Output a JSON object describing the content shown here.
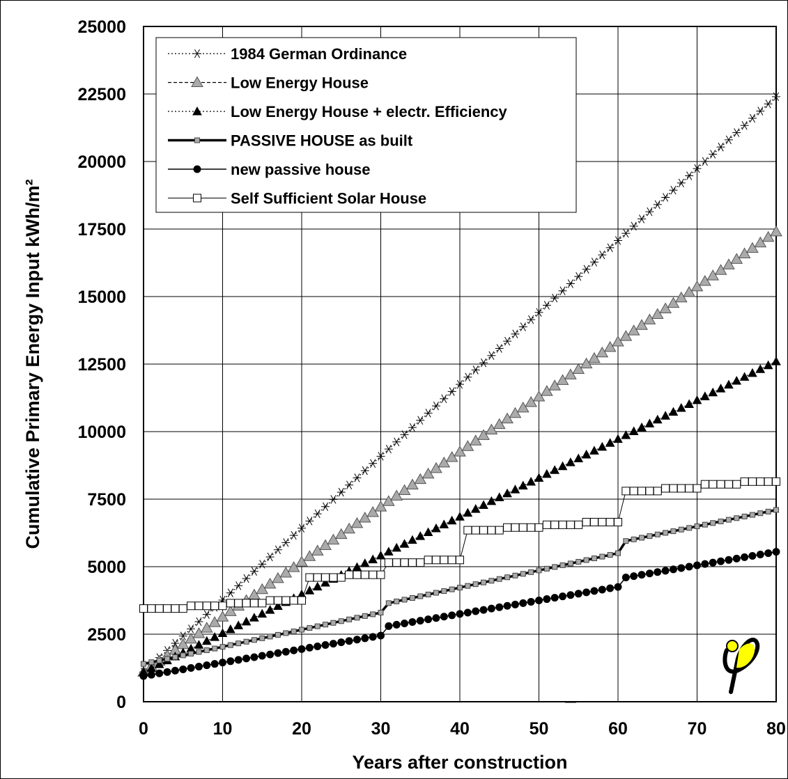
{
  "chart_data": {
    "type": "line",
    "title": "",
    "xlabel": "Years after construction",
    "ylabel": "Cumulative Primary Energy Input kWh/m²",
    "xlim": [
      0,
      80
    ],
    "ylim": [
      0,
      25000
    ],
    "xticks": [
      0,
      10,
      20,
      30,
      40,
      50,
      60,
      70,
      80
    ],
    "yticks": [
      0,
      2500,
      5000,
      7500,
      10000,
      12500,
      15000,
      17500,
      20000,
      22500,
      25000
    ],
    "grid": true,
    "legend_position": "top-left",
    "series": [
      {
        "name": "1984 German Ordinance",
        "marker": "asterisk",
        "line": "dotted",
        "segments": [
          {
            "x0": 0,
            "x1": 80,
            "y0": 1100,
            "y1": 22400
          }
        ]
      },
      {
        "name": "Low Energy House",
        "marker": "triangle-open",
        "line": "dashed",
        "segments": [
          {
            "x0": 0,
            "x1": 80,
            "y0": 1100,
            "y1": 17400
          }
        ]
      },
      {
        "name": "Low Energy House + electr. Efficiency",
        "marker": "triangle-filled",
        "line": "dotted",
        "segments": [
          {
            "x0": 0,
            "x1": 80,
            "y0": 1100,
            "y1": 12600
          }
        ]
      },
      {
        "name": "PASSIVE HOUSE as built",
        "marker": "square-small",
        "line": "solid-thick",
        "segments": [
          {
            "x0": 0,
            "x1": 30,
            "y0": 1400,
            "y1": 3300
          },
          {
            "x0": 31,
            "x1": 60,
            "y0": 3650,
            "y1": 5500
          },
          {
            "x0": 61,
            "x1": 80,
            "y0": 5950,
            "y1": 7100
          }
        ]
      },
      {
        "name": "new passive house",
        "marker": "circle-filled",
        "line": "solid",
        "segments": [
          {
            "x0": 0,
            "x1": 30,
            "y0": 950,
            "y1": 2450
          },
          {
            "x0": 31,
            "x1": 60,
            "y0": 2800,
            "y1": 4250
          },
          {
            "x0": 61,
            "x1": 80,
            "y0": 4600,
            "y1": 5550
          }
        ]
      },
      {
        "name": "Self Sufficient Solar House",
        "marker": "square-open",
        "line": "solid",
        "steps": [
          {
            "x0": 0,
            "x1": 5,
            "y": 3450
          },
          {
            "x0": 6,
            "x1": 10,
            "y": 3550
          },
          {
            "x0": 11,
            "x1": 15,
            "y": 3650
          },
          {
            "x0": 16,
            "x1": 20,
            "y": 3750
          },
          {
            "x0": 21,
            "x1": 25,
            "y": 4600
          },
          {
            "x0": 26,
            "x1": 30,
            "y": 4700
          },
          {
            "x0": 31,
            "x1": 35,
            "y": 5150
          },
          {
            "x0": 36,
            "x1": 40,
            "y": 5250
          },
          {
            "x0": 41,
            "x1": 45,
            "y": 6350
          },
          {
            "x0": 46,
            "x1": 50,
            "y": 6450
          },
          {
            "x0": 51,
            "x1": 55,
            "y": 6550
          },
          {
            "x0": 56,
            "x1": 60,
            "y": 6650
          },
          {
            "x0": 61,
            "x1": 65,
            "y": 7800
          },
          {
            "x0": 66,
            "x1": 70,
            "y": 7900
          },
          {
            "x0": 71,
            "x1": 75,
            "y": 8050
          },
          {
            "x0": 76,
            "x1": 80,
            "y": 8150
          }
        ]
      }
    ]
  },
  "logo": {
    "name": "phi-logo",
    "colors": {
      "circle": "#ffff00",
      "glyph": "#000000"
    }
  }
}
